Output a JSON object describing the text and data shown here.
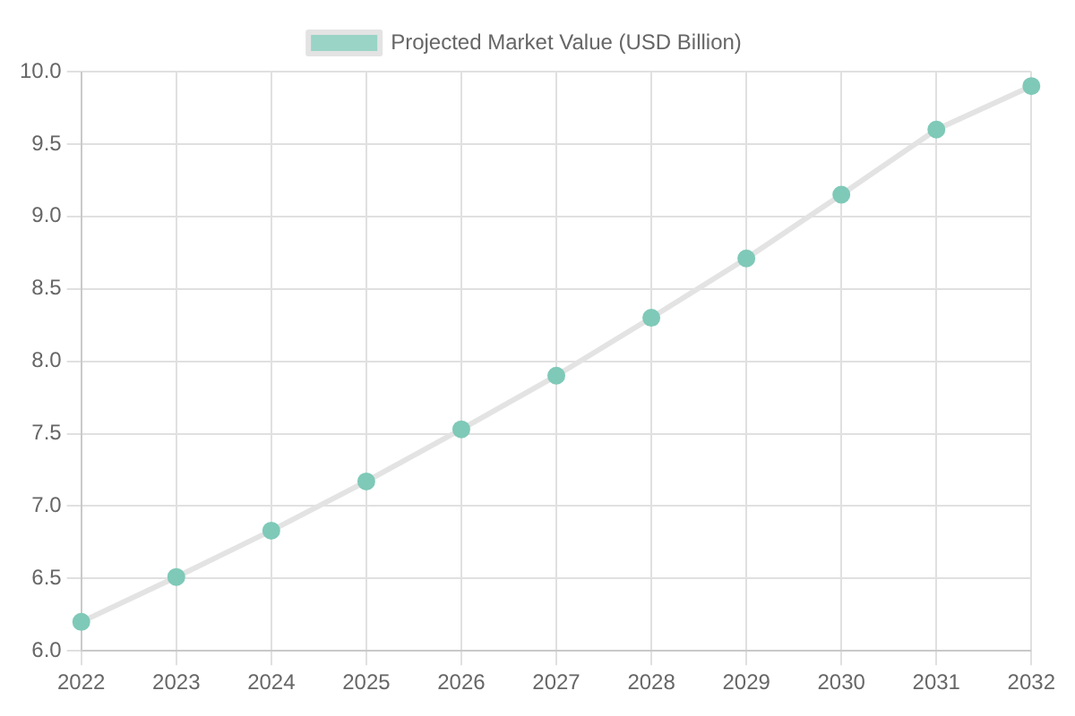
{
  "chart_data": {
    "type": "line",
    "categories": [
      "2022",
      "2023",
      "2024",
      "2025",
      "2026",
      "2027",
      "2028",
      "2029",
      "2030",
      "2031",
      "2032"
    ],
    "series": [
      {
        "name": "Projected Market Value (USD Billion)",
        "color": "#7fc9b8",
        "values": [
          6.2,
          6.51,
          6.83,
          7.17,
          7.53,
          7.9,
          8.3,
          8.71,
          9.15,
          9.6,
          9.9
        ]
      }
    ],
    "ylim": [
      6,
      10
    ],
    "yticks": [
      {
        "value": 6,
        "label": "6.0"
      },
      6.5,
      {
        "value": 7,
        "label": "7.0"
      },
      7.5,
      {
        "value": 8,
        "label": "8.0"
      },
      8.5,
      {
        "value": 9,
        "label": "9.0"
      },
      9.5,
      {
        "value": 10,
        "label": "10.0"
      }
    ],
    "grid": true,
    "legend": "top",
    "marker": "circle"
  }
}
